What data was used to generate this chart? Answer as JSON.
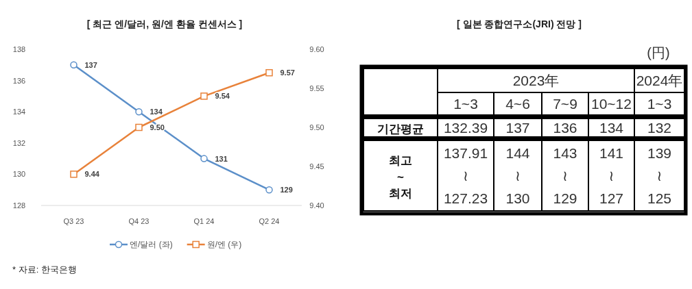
{
  "chart_data": [
    {
      "type": "line",
      "title": "[ 최근 엔/달러, 원/엔 환율 컨센서스 ]",
      "categories": [
        "Q3 23",
        "Q4 23",
        "Q1 24",
        "Q2 24"
      ],
      "series": [
        {
          "name": "엔/달러 (좌)",
          "color": "#5b8fc9",
          "marker": "circle",
          "values": [
            137,
            134,
            131,
            129
          ],
          "value_labels": [
            "137",
            "134",
            "131",
            "129"
          ]
        },
        {
          "name": "원/엔 (우)",
          "color": "#e8823a",
          "marker": "square",
          "axis": "y2",
          "values": [
            9.44,
            9.5,
            9.54,
            9.57
          ],
          "value_labels": [
            "9.44",
            "9.50",
            "9.54",
            "9.57"
          ]
        }
      ],
      "ylim": [
        128,
        138
      ],
      "yticks": [
        128,
        130,
        132,
        134,
        136,
        138
      ],
      "y2lim": [
        9.4,
        9.6
      ],
      "y2ticks": [
        {
          "value": 9.4,
          "label": "9.40"
        },
        {
          "value": 9.45,
          "label": "9.45"
        },
        {
          "value": 9.5,
          "label": "9.50"
        },
        {
          "value": 9.55,
          "label": "9.55"
        },
        {
          "value": 9.6,
          "label": "9.60"
        }
      ],
      "line_style": "solid",
      "legend": "bottom",
      "annotations": [
        "* 자료: 한국은행"
      ]
    },
    {
      "type": "other",
      "title": "[ 일본 종합연구소(JRI) 전망 ]",
      "annotations": [
        "(円)",
        "2023年",
        "2024年",
        "1~3",
        "4~6",
        "7~9",
        "10~12",
        "1~3",
        "기간평균",
        "132.39",
        "137",
        "136",
        "134",
        "132",
        "최고\n~\n최저",
        "137.91\n≀\n127.23",
        "144\n≀\n130",
        "143\n≀\n129",
        "141\n≀\n127",
        "139\n≀\n125"
      ]
    }
  ]
}
